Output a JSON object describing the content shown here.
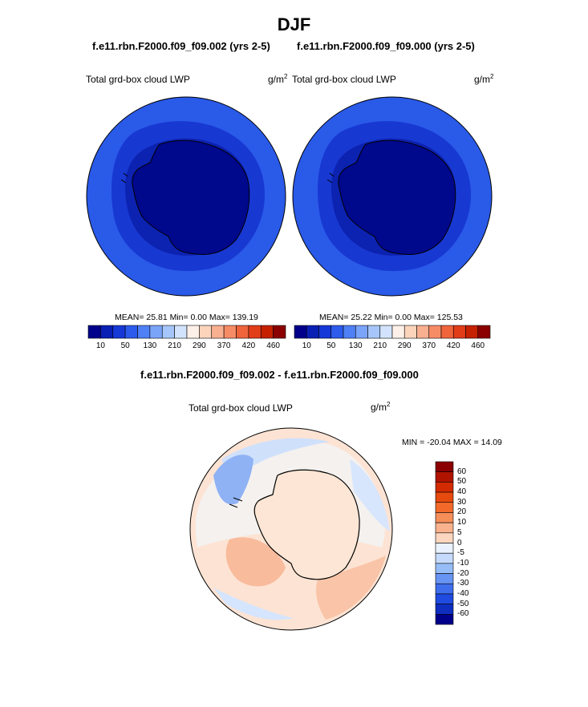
{
  "page": {
    "title": "DJF",
    "subtitle_left": "f.e11.rbn.F2000.f09_f09.002 (yrs 2-5)",
    "subtitle_right": "f.e11.rbn.F2000.f09_f09.000 (yrs 2-5)",
    "diff_title": "f.e11.rbn.F2000.f09_f09.002 - f.e11.rbn.F2000.f09_f09.000"
  },
  "panels": {
    "left": {
      "variable": "Total grd-box cloud LWP",
      "unit_base": "g/m",
      "unit_exp": "2",
      "stats": "MEAN=  25.81  Min=   0.00  Max= 139.19"
    },
    "right": {
      "variable": "Total grd-box cloud LWP",
      "unit_base": "g/m",
      "unit_exp": "2",
      "stats": "MEAN=  25.22  Min=   0.00  Max= 125.53"
    },
    "diff": {
      "variable": "Total grd-box cloud LWP",
      "unit_base": "g/m",
      "unit_exp": "2",
      "minmax": "MIN = -20.04 MAX =  14.09"
    }
  },
  "colorbar_abs": {
    "colors": [
      "#00008b",
      "#0a1fb4",
      "#1638d6",
      "#2d5cec",
      "#4f80f5",
      "#7aa4f8",
      "#a6c6fb",
      "#d2e4fd",
      "#fdf0e8",
      "#fcd4bc",
      "#f9b091",
      "#f68c66",
      "#f0643c",
      "#e23d19",
      "#c52100",
      "#8b0000"
    ],
    "ticks": [
      "10",
      "50",
      "130",
      "210",
      "290",
      "370",
      "420",
      "460"
    ]
  },
  "colorbar_diff": {
    "colors": [
      "#8b0000",
      "#b01400",
      "#d42a00",
      "#e64a0e",
      "#f26a2a",
      "#f68e5a",
      "#f9b28e",
      "#fcd6bf",
      "#e9f2fe",
      "#c6dbfb",
      "#97bdf8",
      "#6895f3",
      "#3f6eed",
      "#1f4be0",
      "#0f2ec0",
      "#00008b"
    ],
    "ticks": [
      "60",
      "50",
      "40",
      "30",
      "20",
      "10",
      "5",
      "0",
      "-5",
      "-10",
      "-20",
      "-30",
      "-40",
      "-50",
      "-60"
    ]
  }
}
